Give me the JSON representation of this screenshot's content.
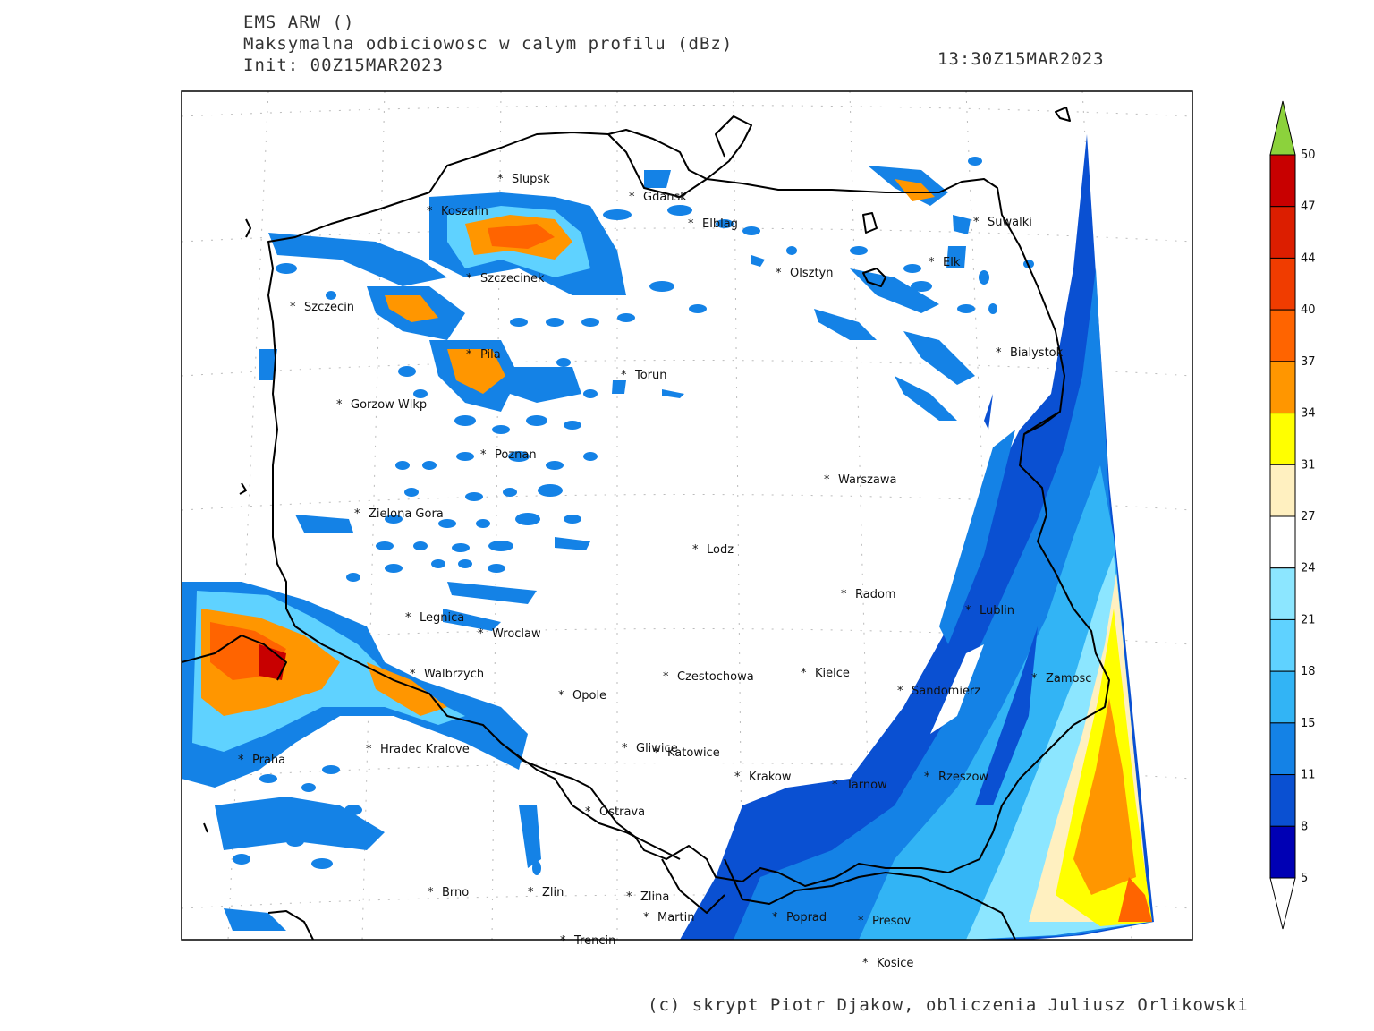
{
  "header": {
    "model": "EMS ARW ()",
    "field": "Maksymalna odbiciowosc w calym profilu (dBz)",
    "init": "Init: 00Z15MAR2023",
    "valid": "13:30Z15MAR2023"
  },
  "credit": "(c) skrypt Piotr Djakow, obliczenia Juliusz Orlikowski",
  "colorbar": {
    "levels": [
      "50",
      "47",
      "44",
      "40",
      "37",
      "34",
      "31",
      "27",
      "24",
      "21",
      "18",
      "15",
      "11",
      "8",
      "5"
    ],
    "colors": [
      "#c80000",
      "#dc1e00",
      "#f03c00",
      "#ff6400",
      "#ff9600",
      "#ffff00",
      "#fff0c0",
      "#ffffff",
      "#8ce6ff",
      "#5fd2ff",
      "#32b4f5",
      "#1482e6",
      "#0a50d2",
      "#0000b4"
    ],
    "over_color": "#8cd23c",
    "under_color": "#ffffff"
  },
  "cities": [
    {
      "name": "Slupsk"
    },
    {
      "name": "Koszalin"
    },
    {
      "name": "Gdansk"
    },
    {
      "name": "Elblag"
    },
    {
      "name": "Szczecinek"
    },
    {
      "name": "Szczecin"
    },
    {
      "name": "Olsztyn"
    },
    {
      "name": "Suwalki"
    },
    {
      "name": "Elk"
    },
    {
      "name": "Bialystok"
    },
    {
      "name": "Pila"
    },
    {
      "name": "Torun"
    },
    {
      "name": "Gorzow Wlkp"
    },
    {
      "name": "Poznan"
    },
    {
      "name": "Warszawa"
    },
    {
      "name": "Zielona Gora"
    },
    {
      "name": "Lodz"
    },
    {
      "name": "Radom"
    },
    {
      "name": "Lublin"
    },
    {
      "name": "Legnica"
    },
    {
      "name": "Wroclaw"
    },
    {
      "name": "Walbrzych"
    },
    {
      "name": "Czestochowa"
    },
    {
      "name": "Kielce"
    },
    {
      "name": "Opole"
    },
    {
      "name": "Sandomierz"
    },
    {
      "name": "Zamosc"
    },
    {
      "name": "Hradec Kralove"
    },
    {
      "name": "Gliwice"
    },
    {
      "name": "Katowice"
    },
    {
      "name": "Praha"
    },
    {
      "name": "Krakow"
    },
    {
      "name": "Tarnow"
    },
    {
      "name": "Rzeszow"
    },
    {
      "name": "Ostrava"
    },
    {
      "name": "Brno"
    },
    {
      "name": "Zlin"
    },
    {
      "name": "Zlina"
    },
    {
      "name": "Martin"
    },
    {
      "name": "Poprad"
    },
    {
      "name": "Presov"
    },
    {
      "name": "Trencin"
    },
    {
      "name": "Kosice"
    }
  ]
}
